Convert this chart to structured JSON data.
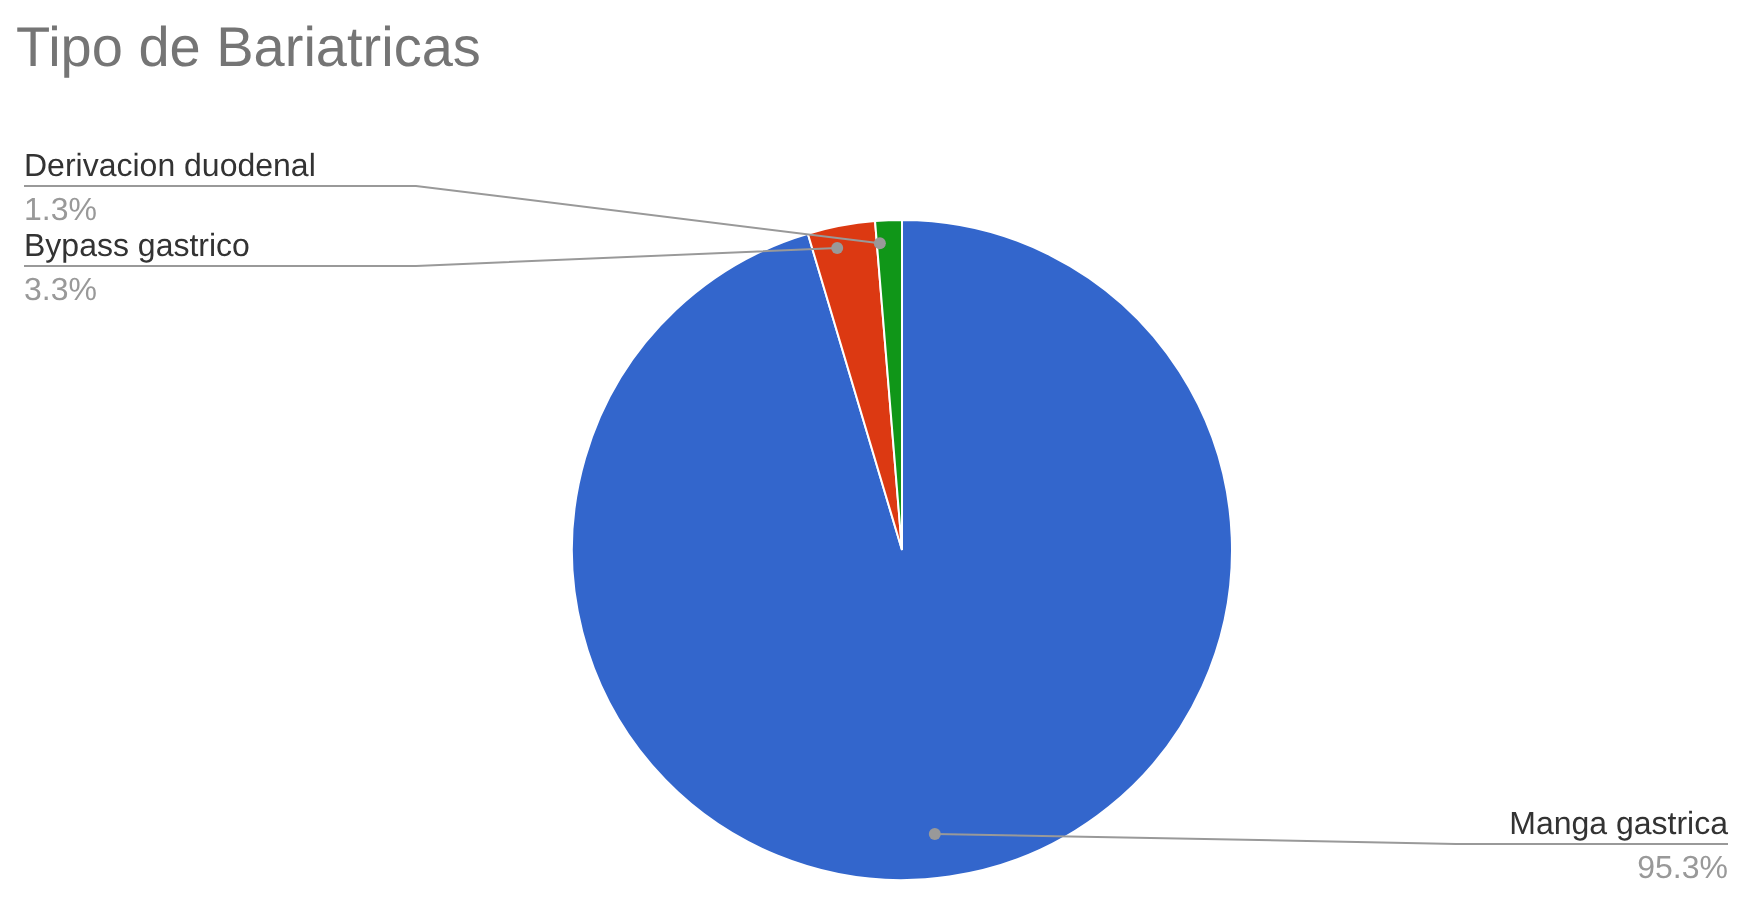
{
  "chart_data": {
    "type": "pie",
    "title": "Tipo de Bariatricas",
    "categories": [
      "Manga gastrica",
      "Bypass gastrico",
      "Derivacion duodenal"
    ],
    "values": [
      95.3,
      3.3,
      1.3
    ],
    "colors": [
      "#3366cc",
      "#dc3912",
      "#109618"
    ],
    "value_labels": [
      "95.3%",
      "3.3%",
      "1.3%"
    ],
    "legend": false
  }
}
